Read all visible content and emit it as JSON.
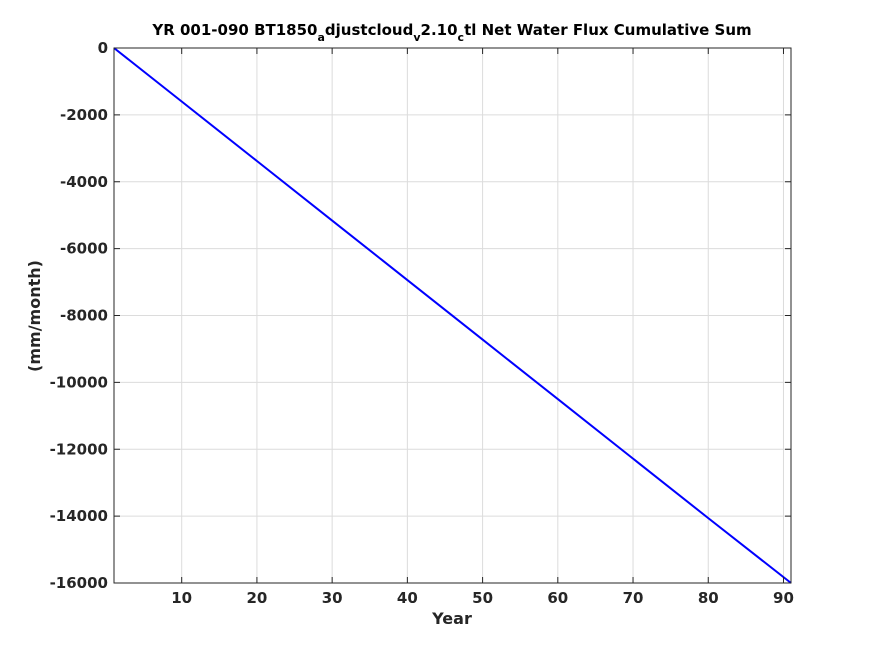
{
  "chart_data": {
    "type": "line",
    "title": {
      "p1": "YR 001-090 BT1850",
      "s1": "a",
      "p2": "djustcloud",
      "s2": "v",
      "p3": "2.10",
      "s3": "c",
      "p4": "tl Net Water Flux Cumulative Sum"
    },
    "xlabel": "Year",
    "ylabel": "(mm/month)",
    "xlim": [
      1,
      91
    ],
    "ylim": [
      -16000,
      0
    ],
    "xticks": [
      10,
      20,
      30,
      40,
      50,
      60,
      70,
      80,
      90
    ],
    "yticks": [
      0,
      -2000,
      -4000,
      -6000,
      -8000,
      -10000,
      -12000,
      -14000,
      -16000
    ],
    "grid": true,
    "series": [
      {
        "color": "#0000ff",
        "x": [
          1,
          10,
          20,
          30,
          40,
          50,
          60,
          70,
          80,
          91
        ],
        "y": [
          0,
          -1600,
          -3380,
          -5160,
          -6940,
          -8720,
          -10500,
          -12280,
          -14060,
          -16000
        ]
      }
    ]
  }
}
